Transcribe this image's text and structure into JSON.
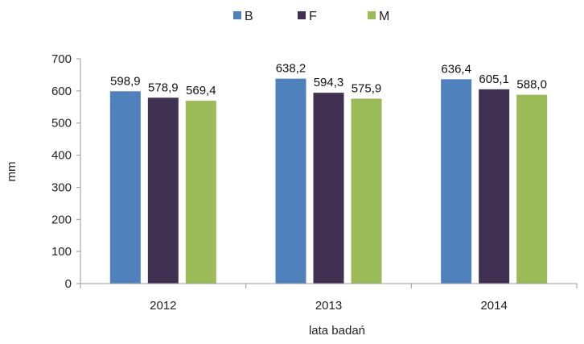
{
  "chart_data": {
    "type": "bar",
    "categories": [
      "2012",
      "2013",
      "2014"
    ],
    "series": [
      {
        "name": "B",
        "color": "#4f81bd",
        "values": [
          598.9,
          638.2,
          636.4
        ],
        "labels": [
          "598,9",
          "638,2",
          "636,4"
        ]
      },
      {
        "name": "F",
        "color": "#403152",
        "values": [
          578.9,
          594.3,
          605.1
        ],
        "labels": [
          "578,9",
          "594,3",
          "605,1"
        ]
      },
      {
        "name": "M",
        "color": "#9bbb59",
        "values": [
          569.4,
          575.9,
          588.0
        ],
        "labels": [
          "569,4",
          "575,9",
          "588,0"
        ]
      }
    ],
    "xlabel": "lata badań",
    "ylabel": "mm",
    "ylim": [
      0,
      700
    ],
    "yticks": [
      0,
      100,
      200,
      300,
      400,
      500,
      600,
      700
    ],
    "grid": false,
    "legend_position": "top"
  }
}
